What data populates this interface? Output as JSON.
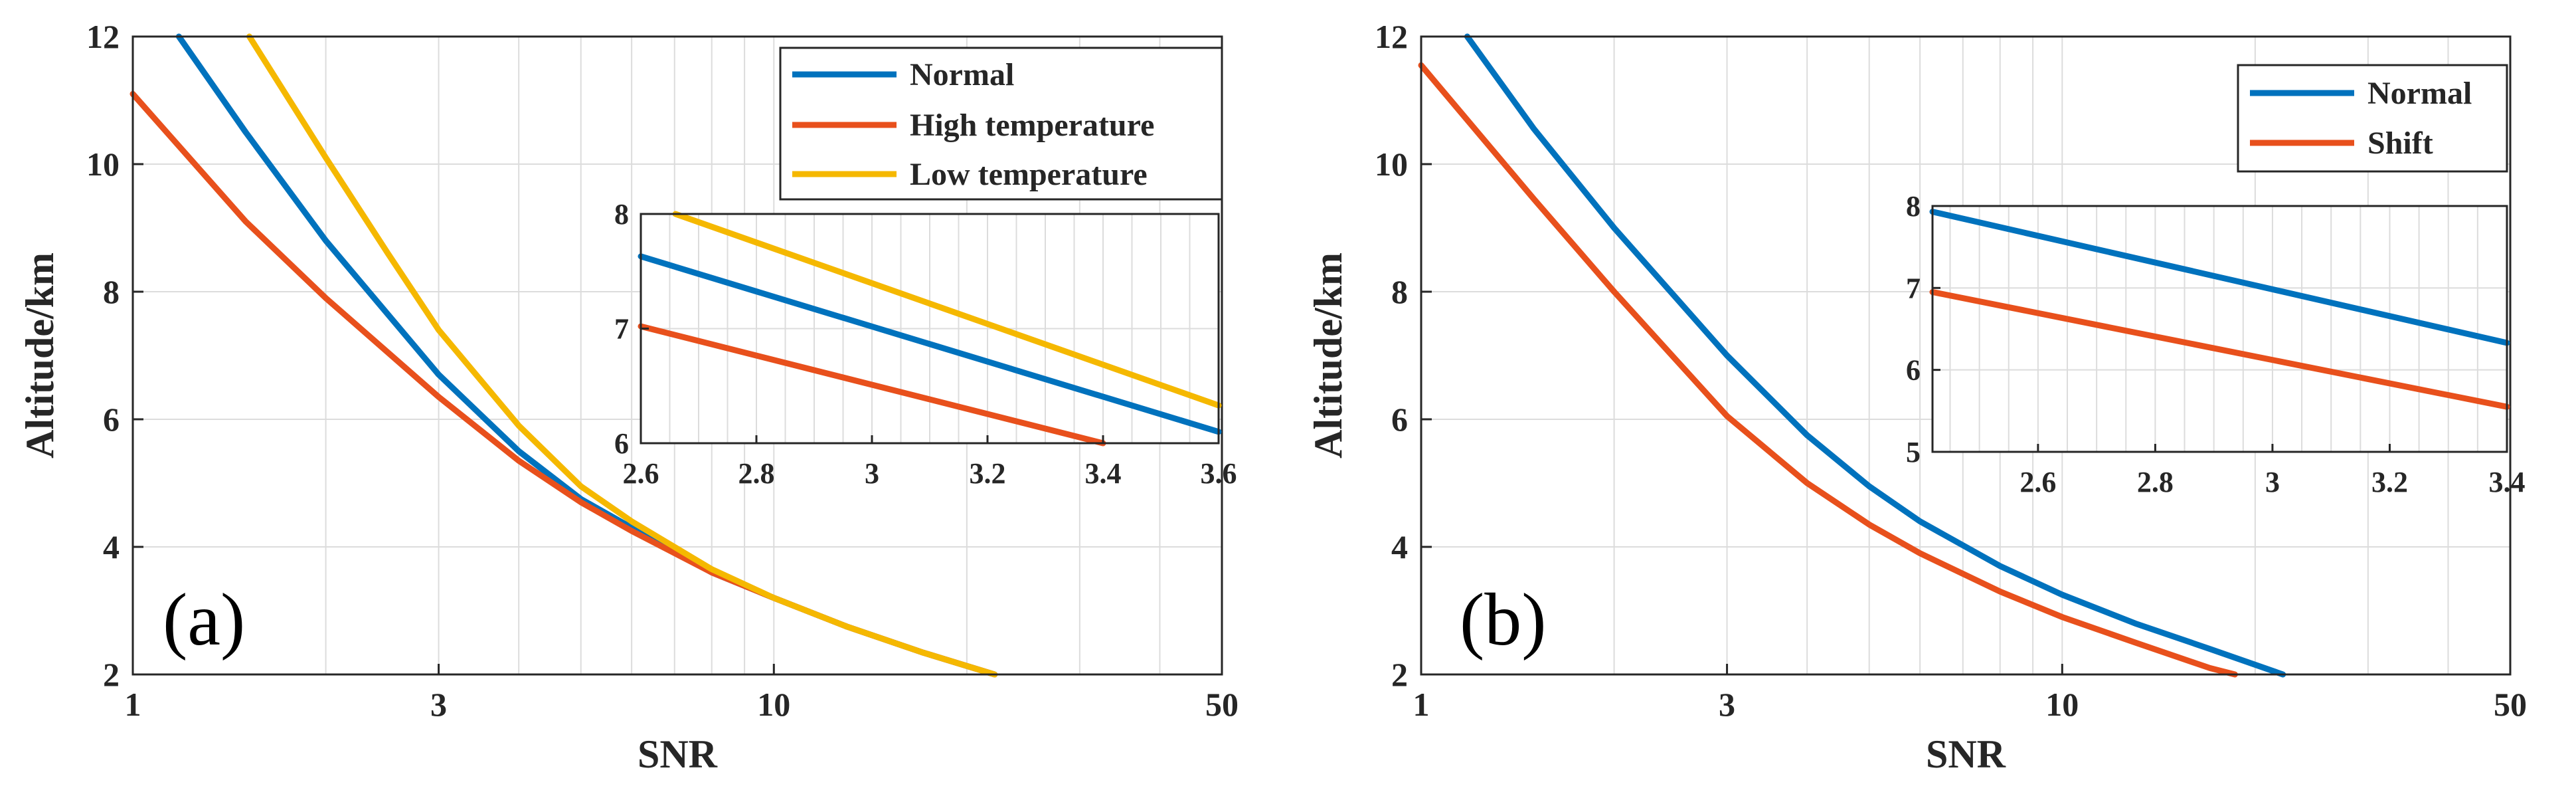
{
  "colors": {
    "blue": "#0072BD",
    "orange": "#E8501C",
    "yellow": "#F5B800",
    "grid": "#DCDCDC",
    "axis": "#262626"
  },
  "chart_data": [
    {
      "type": "line",
      "panel_label": "(a)",
      "xlabel": "SNR",
      "ylabel": "Altitude/km",
      "xscale": "log",
      "xlim": [
        1,
        50
      ],
      "ylim": [
        2,
        12
      ],
      "xticks": [
        1,
        3,
        10,
        50
      ],
      "xtick_labels": [
        "1",
        "3",
        "10",
        "50"
      ],
      "yticks": [
        2,
        4,
        6,
        8,
        10,
        12
      ],
      "ytick_labels": [
        "2",
        "4",
        "6",
        "8",
        "10",
        "12"
      ],
      "grid": true,
      "legend_position": "top-right",
      "series": [
        {
          "name": "Normal",
          "color": "#0072BD",
          "x": [
            1.18,
            1.5,
            2,
            3,
            4,
            5,
            6,
            8,
            10,
            13,
            17,
            22.1
          ],
          "y": [
            12,
            10.5,
            8.8,
            6.7,
            5.5,
            4.75,
            4.3,
            3.6,
            3.2,
            2.75,
            2.35,
            2.0
          ]
        },
        {
          "name": "High temperature",
          "color": "#E8501C",
          "x": [
            1,
            1.5,
            2,
            3,
            4,
            5,
            6,
            8,
            10,
            13,
            17,
            22.1
          ],
          "y": [
            11.1,
            9.1,
            7.9,
            6.35,
            5.35,
            4.7,
            4.25,
            3.6,
            3.2,
            2.75,
            2.35,
            2.0
          ]
        },
        {
          "name": "Low temperature",
          "color": "#F5B800",
          "x": [
            1.52,
            2,
            2.5,
            3,
            4,
            5,
            6,
            8,
            10,
            13,
            17,
            22.1
          ],
          "y": [
            12,
            10.1,
            8.6,
            7.4,
            5.9,
            4.95,
            4.4,
            3.65,
            3.2,
            2.75,
            2.35,
            2.0
          ]
        }
      ],
      "inset": {
        "xlim": [
          2.6,
          3.6
        ],
        "ylim": [
          6,
          8
        ],
        "xticks": [
          2.6,
          2.8,
          3,
          3.2,
          3.4,
          3.6
        ],
        "xtick_labels": [
          "2.6",
          "2.8",
          "3",
          "3.2",
          "3.4",
          "3.6"
        ],
        "yticks": [
          6,
          7,
          8
        ],
        "ytick_labels": [
          "6",
          "7",
          "8"
        ],
        "series": [
          {
            "name": "Normal",
            "color": "#0072BD",
            "x": [
              2.6,
              3.6
            ],
            "y": [
              7.63,
              6.1
            ]
          },
          {
            "name": "High temperature",
            "color": "#E8501C",
            "x": [
              2.6,
              3.4
            ],
            "y": [
              7.02,
              6.0
            ]
          },
          {
            "name": "Low temperature",
            "color": "#F5B800",
            "x": [
              2.66,
              3.6
            ],
            "y": [
              8.0,
              6.33
            ]
          }
        ]
      }
    },
    {
      "type": "line",
      "panel_label": "(b)",
      "xlabel": "SNR",
      "ylabel": "Altitude/km",
      "xscale": "log",
      "xlim": [
        1,
        50
      ],
      "ylim": [
        2,
        12
      ],
      "xticks": [
        1,
        3,
        10,
        50
      ],
      "xtick_labels": [
        "1",
        "3",
        "10",
        "50"
      ],
      "yticks": [
        2,
        4,
        6,
        8,
        10,
        12
      ],
      "ytick_labels": [
        "2",
        "4",
        "6",
        "8",
        "10",
        "12"
      ],
      "grid": true,
      "legend_position": "top-right",
      "series": [
        {
          "name": "Normal",
          "color": "#0072BD",
          "x": [
            1.18,
            1.5,
            2,
            3,
            4,
            5,
            6,
            8,
            10,
            13,
            17,
            22.1
          ],
          "y": [
            12,
            10.55,
            9.0,
            7.0,
            5.75,
            4.95,
            4.4,
            3.7,
            3.25,
            2.8,
            2.4,
            2.0
          ]
        },
        {
          "name": "Shift",
          "color": "#E8501C",
          "x": [
            1,
            1.5,
            2,
            3,
            4,
            5,
            6,
            8,
            10,
            13,
            17,
            18.6
          ],
          "y": [
            11.55,
            9.45,
            8.0,
            6.05,
            5.0,
            4.35,
            3.9,
            3.3,
            2.9,
            2.5,
            2.1,
            2.0
          ]
        }
      ],
      "inset": {
        "xlim": [
          2.42,
          3.4
        ],
        "ylim": [
          5,
          8
        ],
        "xticks": [
          2.6,
          2.8,
          3,
          3.2,
          3.4
        ],
        "xtick_labels": [
          "2.6",
          "2.8",
          "3",
          "3.2",
          "3.4"
        ],
        "yticks": [
          5,
          6,
          7,
          8
        ],
        "ytick_labels": [
          "5",
          "6",
          "7",
          "8"
        ],
        "series": [
          {
            "name": "Normal",
            "color": "#0072BD",
            "x": [
              2.42,
              3.4
            ],
            "y": [
              7.93,
              6.33
            ]
          },
          {
            "name": "Shift",
            "color": "#E8501C",
            "x": [
              2.42,
              3.4
            ],
            "y": [
              6.95,
              5.55
            ]
          }
        ]
      }
    }
  ]
}
